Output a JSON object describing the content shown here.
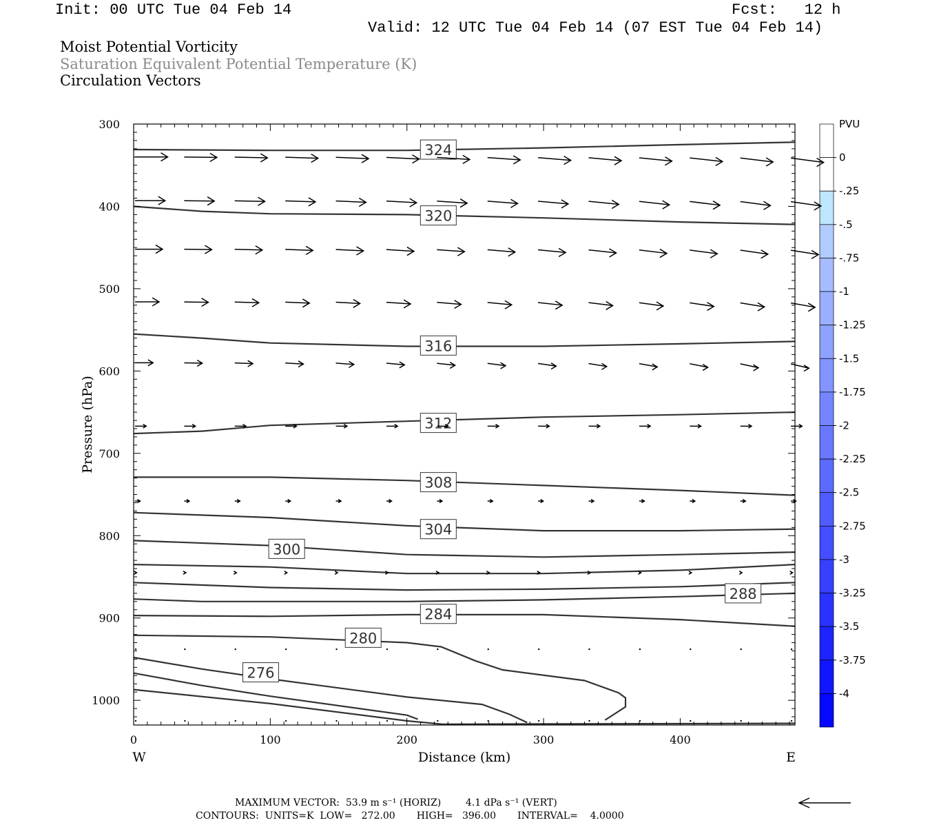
{
  "header": {
    "init": "Init: 00 UTC Tue 04 Feb 14",
    "fcst": "Fcst:   12 h",
    "valid": "Valid: 12 UTC Tue 04 Feb 14 (07 EST Tue 04 Feb 14)",
    "field1": "Moist Potential Vorticity",
    "field2": "Saturation Equivalent Potential Temperature (K)",
    "field3": "Circulation Vectors"
  },
  "footer": {
    "max_vector": "MAXIMUM VECTOR:  53.9 m s⁻¹ (HORIZ)        4.1 dPa s⁻¹ (VERT)",
    "contours": "CONTOURS:  UNITS=K  LOW=   272.00       HIGH=   396.00       INTERVAL=    4.0000"
  },
  "colors": {
    "contour": "#333333",
    "vector": "#000000",
    "colorbar": [
      "#ffffff",
      "#ffffff",
      "#bfe6ff",
      "#b0ccff",
      "#a6bcff",
      "#9aafff",
      "#8da2ff",
      "#8194ff",
      "#7486ff",
      "#6878ff",
      "#5b6aff",
      "#4f5cff",
      "#424eff",
      "#3640ff",
      "#2932ff",
      "#1d24ff",
      "#1016ff",
      "#0408ff"
    ]
  },
  "chart_data": {
    "type": "contour-cross-section",
    "xlabel": "Distance (km)",
    "ylabel": "Pressure (hPa)",
    "x_ticks": [
      0,
      100,
      200,
      300,
      400
    ],
    "y_ticks": [
      300,
      400,
      500,
      600,
      700,
      800,
      900,
      1000
    ],
    "xlim": [
      0,
      484
    ],
    "ylim": [
      1030,
      300
    ],
    "x_end_labels": {
      "left": "W",
      "right": "E"
    },
    "colorbar": {
      "units": "PVU",
      "labels": [
        "0",
        "-.25",
        "-.5",
        "-.75",
        "-1",
        "-1.25",
        "-1.5",
        "-1.75",
        "-2",
        "-2.25",
        "-2.5",
        "-2.75",
        "-3",
        "-3.25",
        "-3.5",
        "-3.75",
        "-4"
      ]
    },
    "contours": [
      {
        "label": "324",
        "label_at": [
          223,
          331
        ],
        "points": [
          [
            0,
            331
          ],
          [
            100,
            332
          ],
          [
            200,
            332
          ],
          [
            300,
            329
          ],
          [
            400,
            325
          ],
          [
            484,
            322
          ]
        ]
      },
      {
        "label": "320",
        "label_at": [
          223,
          411
        ],
        "points": [
          [
            0,
            400
          ],
          [
            50,
            406
          ],
          [
            100,
            409
          ],
          [
            200,
            410
          ],
          [
            300,
            414
          ],
          [
            400,
            419
          ],
          [
            484,
            422
          ]
        ]
      },
      {
        "label": "316",
        "label_at": [
          223,
          569
        ],
        "points": [
          [
            0,
            555
          ],
          [
            50,
            560
          ],
          [
            100,
            566
          ],
          [
            200,
            570
          ],
          [
            300,
            570
          ],
          [
            400,
            567
          ],
          [
            484,
            564
          ]
        ]
      },
      {
        "label": "312",
        "label_at": [
          223,
          663
        ],
        "points": [
          [
            0,
            676
          ],
          [
            50,
            673
          ],
          [
            100,
            666
          ],
          [
            200,
            661
          ],
          [
            300,
            656
          ],
          [
            400,
            653
          ],
          [
            484,
            650
          ]
        ]
      },
      {
        "label": "308",
        "label_at": [
          223,
          735
        ],
        "points": [
          [
            0,
            729
          ],
          [
            100,
            729
          ],
          [
            200,
            733
          ],
          [
            300,
            739
          ],
          [
            400,
            745
          ],
          [
            484,
            751
          ]
        ]
      },
      {
        "label": "304",
        "label_at": [
          223,
          792
        ],
        "points": [
          [
            0,
            772
          ],
          [
            100,
            778
          ],
          [
            200,
            788
          ],
          [
            300,
            794
          ],
          [
            400,
            794
          ],
          [
            484,
            792
          ]
        ]
      },
      {
        "label": "300",
        "label_at": [
          112,
          816
        ],
        "points": [
          [
            0,
            806
          ],
          [
            100,
            812
          ],
          [
            200,
            823
          ],
          [
            300,
            826
          ],
          [
            400,
            823
          ],
          [
            484,
            820
          ]
        ]
      },
      {
        "label": "",
        "points": [
          [
            0,
            835
          ],
          [
            100,
            838
          ],
          [
            200,
            846
          ],
          [
            300,
            846
          ],
          [
            400,
            842
          ],
          [
            484,
            835
          ]
        ]
      },
      {
        "label": "",
        "points": [
          [
            0,
            857
          ],
          [
            100,
            863
          ],
          [
            200,
            866
          ],
          [
            300,
            865
          ],
          [
            400,
            862
          ],
          [
            484,
            857
          ]
        ]
      },
      {
        "label": "288",
        "label_at": [
          446,
          870
        ],
        "points": [
          [
            0,
            877
          ],
          [
            50,
            880
          ],
          [
            100,
            880
          ],
          [
            200,
            880
          ],
          [
            300,
            878
          ],
          [
            400,
            874
          ],
          [
            484,
            870
          ]
        ]
      },
      {
        "label": "284",
        "label_at": [
          223,
          895
        ],
        "points": [
          [
            0,
            897
          ],
          [
            100,
            898
          ],
          [
            200,
            896
          ],
          [
            300,
            896
          ],
          [
            400,
            902
          ],
          [
            484,
            910
          ]
        ]
      },
      {
        "label": "280",
        "label_at": [
          168,
          924
        ],
        "points": [
          [
            0,
            921
          ],
          [
            100,
            923
          ],
          [
            200,
            930
          ],
          [
            225,
            935
          ],
          [
            250,
            952
          ],
          [
            270,
            963
          ],
          [
            330,
            976
          ],
          [
            355,
            991
          ],
          [
            360,
            997
          ],
          [
            360,
            1008
          ],
          [
            345,
            1024
          ]
        ]
      },
      {
        "label": "276",
        "label_at": [
          93,
          966
        ],
        "points": [
          [
            0,
            948
          ],
          [
            50,
            962
          ],
          [
            100,
            974
          ],
          [
            200,
            996
          ],
          [
            255,
            1005
          ],
          [
            275,
            1017
          ],
          [
            288,
            1027
          ]
        ]
      },
      {
        "label": "",
        "points": [
          [
            0,
            967
          ],
          [
            50,
            982
          ],
          [
            100,
            995
          ],
          [
            200,
            1018
          ],
          [
            208,
            1023
          ]
        ]
      },
      {
        "label": "",
        "points": [
          [
            0,
            987
          ],
          [
            100,
            1004
          ],
          [
            200,
            1025
          ],
          [
            226,
            1029
          ],
          [
            484,
            1028
          ]
        ]
      }
    ],
    "vectors": {
      "rows": [
        {
          "p": 340,
          "lengths": [
            38,
            38,
            38,
            38,
            38,
            38,
            38,
            38,
            38,
            38,
            38,
            38,
            38,
            38
          ]
        },
        {
          "p": 393,
          "lengths": [
            35,
            35,
            35,
            35,
            35,
            35,
            35,
            35,
            35,
            35,
            35,
            35,
            35,
            35
          ]
        },
        {
          "p": 452,
          "lengths": [
            32,
            32,
            32,
            32,
            32,
            32,
            32,
            32,
            32,
            32,
            32,
            32,
            32,
            32
          ]
        },
        {
          "p": 516,
          "lengths": [
            28,
            28,
            28,
            28,
            28,
            28,
            28,
            28,
            28,
            28,
            28,
            28,
            28,
            28
          ]
        },
        {
          "p": 590,
          "lengths": [
            21,
            21,
            21,
            21,
            21,
            21,
            21,
            21,
            21,
            21,
            21,
            21,
            21,
            21
          ]
        },
        {
          "p": 667,
          "lengths": [
            13,
            13,
            13,
            13,
            13,
            13,
            13,
            13,
            13,
            13,
            13,
            13,
            13,
            13
          ]
        },
        {
          "p": 758,
          "lengths": [
            6,
            6,
            6,
            6,
            6,
            6,
            6,
            6,
            6,
            6,
            6,
            6,
            6,
            6
          ]
        },
        {
          "p": 845,
          "lengths": [
            2,
            2,
            2,
            2,
            2,
            2,
            2,
            2,
            2,
            2,
            2,
            2,
            2,
            2
          ]
        },
        {
          "p": 938,
          "lengths": [
            0,
            0,
            0,
            0,
            0,
            0,
            0,
            0,
            0,
            0,
            0,
            0,
            0,
            0
          ]
        },
        {
          "p": 1025,
          "lengths": [
            0,
            0,
            0,
            0,
            0,
            0,
            0,
            0,
            0,
            0,
            0,
            0,
            0,
            0
          ]
        }
      ],
      "x_positions": [
        1,
        37,
        74,
        111,
        148,
        185,
        222,
        259,
        296,
        333,
        370,
        407,
        444,
        481
      ]
    }
  }
}
